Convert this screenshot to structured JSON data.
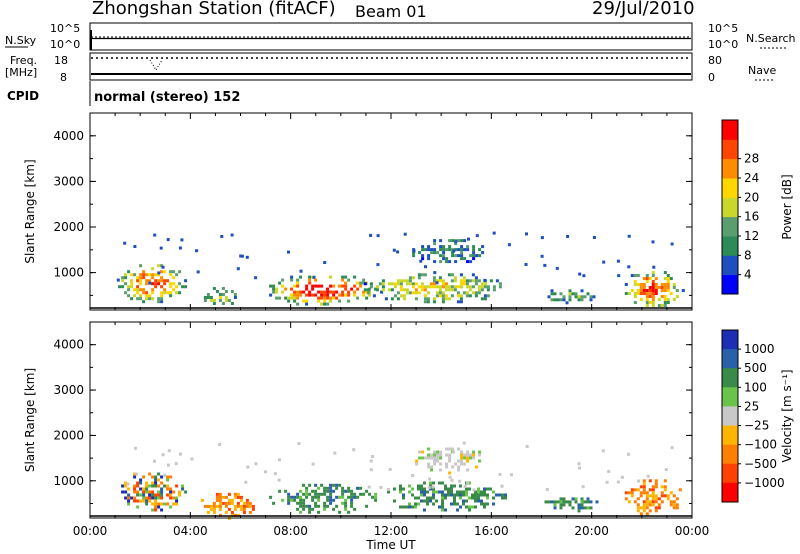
{
  "header": {
    "station": "Zhongshan Station (fitACF)",
    "beam": "Beam 01",
    "date": "29/Jul/2010"
  },
  "status_panels": {
    "nsky_label": "N.Sky",
    "nsky_ticks": [
      "10^5",
      "10^0"
    ],
    "nsearch_label": "N.Search",
    "nsearch_ticks": [
      "10^5",
      "10^0"
    ],
    "freq_label": "Freq.",
    "freq_unit": "[MHz]",
    "freq_ticks": [
      "18",
      "8"
    ],
    "nave_label": "Nave",
    "nave_ticks": [
      "80",
      "0"
    ],
    "cpid_label": "CPID",
    "cpid_value": "normal (stereo) 152"
  },
  "chart_data": [
    {
      "type": "heatmap",
      "name": "power",
      "ylabel": "Slant Range [km]",
      "ylim": [
        180,
        4500
      ],
      "yticks": [
        "1000",
        "2000",
        "3000",
        "4000"
      ],
      "xlim_hours": [
        0,
        24
      ],
      "colorbar_label": "Power [dB]",
      "colorbar_ticks": [
        "4",
        "8",
        "12",
        "16",
        "20",
        "24",
        "28"
      ],
      "colors": [
        "#0000ff",
        "#1f4fbf",
        "#2e8b57",
        "#5a9e6f",
        "#c9d72a",
        "#ffd700",
        "#ff8c00",
        "#ff4500",
        "#ff0000"
      ],
      "echo_regions": [
        {
          "t0": 1.0,
          "t1": 3.8,
          "r0": 350,
          "r1": 1250,
          "core": 0.7
        },
        {
          "t0": 4.3,
          "t1": 5.8,
          "r0": 250,
          "r1": 750,
          "core": 0.3
        },
        {
          "t0": 6.9,
          "t1": 11.6,
          "r0": 300,
          "r1": 1000,
          "core": 0.85
        },
        {
          "t0": 10.8,
          "t1": 16.6,
          "r0": 350,
          "r1": 1050,
          "core": 0.45
        },
        {
          "t0": 12.6,
          "t1": 15.8,
          "r0": 1200,
          "r1": 1800,
          "core": 0.1
        },
        {
          "t0": 18.0,
          "t1": 20.3,
          "r0": 350,
          "r1": 700,
          "core": 0.2
        },
        {
          "t0": 21.2,
          "t1": 23.6,
          "r0": 250,
          "r1": 1100,
          "core": 0.8
        }
      ]
    },
    {
      "type": "heatmap",
      "name": "velocity",
      "ylabel": "Slant Range [km]",
      "ylim": [
        180,
        4500
      ],
      "yticks": [
        "1000",
        "2000",
        "3000",
        "4000"
      ],
      "xlabel": "Time UT",
      "xticks": [
        "00:00",
        "04:00",
        "08:00",
        "12:00",
        "16:00",
        "20:00",
        "00:00"
      ],
      "xlim_hours": [
        0,
        24
      ],
      "colorbar_label": "Velocity [m s⁻¹]",
      "colorbar_ticks": [
        "1000",
        "500",
        "100",
        "25",
        "−25",
        "−100",
        "−500",
        "−1000"
      ],
      "colors": [
        "#1c2eb4",
        "#2a5faa",
        "#3a8a4a",
        "#6ac34a",
        "#c8c8c8",
        "#ffb400",
        "#ff7f00",
        "#ff4000",
        "#ff0000"
      ],
      "echo_regions": [
        {
          "t0": 1.0,
          "t1": 3.8,
          "r0": 350,
          "r1": 1250,
          "v": "mixed"
        },
        {
          "t0": 4.3,
          "t1": 6.6,
          "r0": 200,
          "r1": 800,
          "v": "negative"
        },
        {
          "t0": 6.9,
          "t1": 11.6,
          "r0": 300,
          "r1": 1000,
          "v": "positive"
        },
        {
          "t0": 11.6,
          "t1": 16.6,
          "r0": 350,
          "r1": 1050,
          "v": "positive"
        },
        {
          "t0": 12.6,
          "t1": 15.8,
          "r0": 1200,
          "r1": 1800,
          "v": "near_zero"
        },
        {
          "t0": 18.0,
          "t1": 20.3,
          "r0": 350,
          "r1": 700,
          "v": "positive"
        },
        {
          "t0": 21.2,
          "t1": 23.6,
          "r0": 250,
          "r1": 1100,
          "v": "negative"
        }
      ]
    }
  ]
}
